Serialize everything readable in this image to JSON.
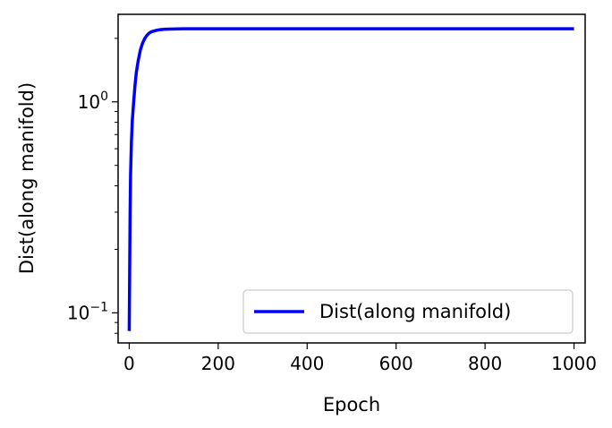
{
  "chart_data": {
    "type": "line",
    "title": "",
    "xlabel": "Epoch",
    "ylabel": "Dist(along manifold)",
    "xlim": [
      -25,
      1025
    ],
    "ylim": [
      0.072,
      2.6
    ],
    "yscale": "log",
    "grid": false,
    "legend_position": "lower-right",
    "x_ticks": [
      0,
      200,
      400,
      600,
      800,
      1000
    ],
    "x_tick_labels": [
      "0",
      "200",
      "400",
      "600",
      "800",
      "1000"
    ],
    "y_ticks": [
      0.1,
      1
    ],
    "y_tick_labels": [
      {
        "base": "10",
        "exp": "−1"
      },
      {
        "base": "10",
        "exp": "0"
      }
    ],
    "series": [
      {
        "name": "Dist(along manifold)",
        "color": "#0000ff",
        "x": [
          0,
          1,
          2,
          3,
          5,
          7,
          10,
          13,
          16,
          20,
          25,
          30,
          35,
          40,
          45,
          50,
          60,
          70,
          80,
          100,
          120,
          150,
          200,
          300,
          400,
          500,
          600,
          700,
          800,
          900,
          1000
        ],
        "y": [
          0.082,
          0.16,
          0.3,
          0.45,
          0.65,
          0.82,
          1.0,
          1.2,
          1.38,
          1.56,
          1.76,
          1.9,
          2.0,
          2.07,
          2.12,
          2.15,
          2.18,
          2.2,
          2.21,
          2.215,
          2.22,
          2.22,
          2.22,
          2.22,
          2.22,
          2.22,
          2.22,
          2.22,
          2.22,
          2.22,
          2.22
        ]
      }
    ]
  }
}
